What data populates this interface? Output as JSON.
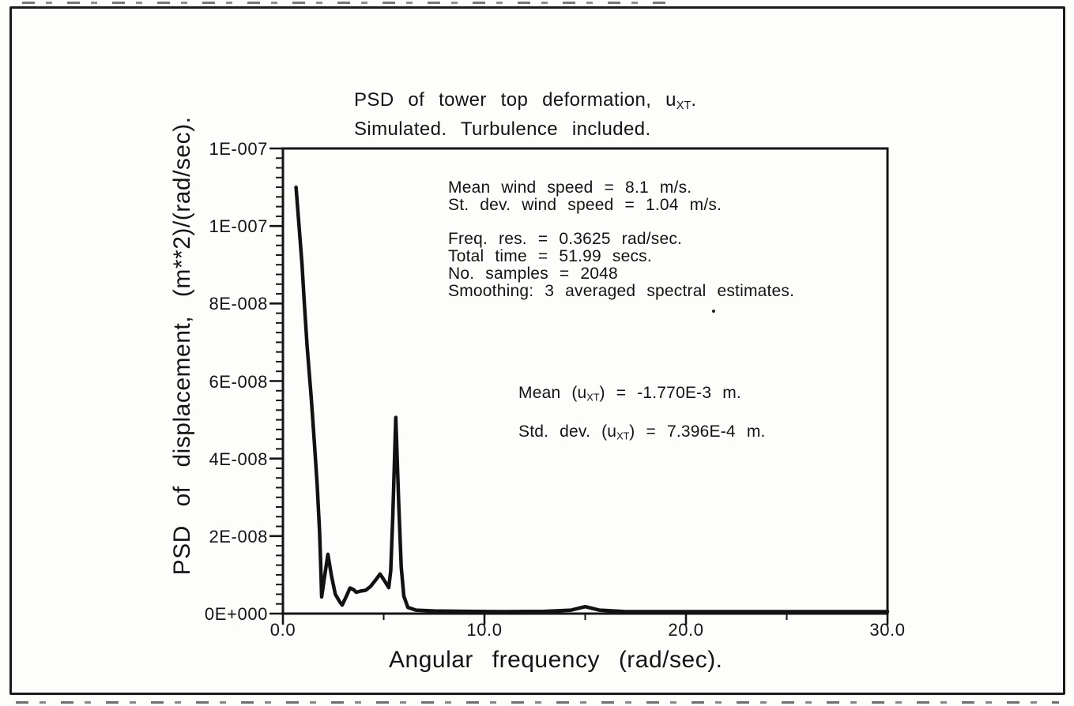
{
  "figure": {
    "title": {
      "pre": "PSD of tower top deformation, u",
      "sub": "XT",
      "post": ".",
      "line2": "Simulated. Turbulence included."
    }
  },
  "annotations": {
    "wind": [
      "Mean wind speed = 8.1 m/s.",
      "St. dev. wind speed = 1.04 m/s."
    ],
    "spectral": [
      "Freq. res. = 0.3625 rad/sec.",
      "Total time = 51.99 secs.",
      "No. samples = 2048",
      "Smoothing: 3 averaged spectral estimates."
    ],
    "stats": [
      {
        "pre": "Mean (u",
        "sub": "XT",
        "post": ") = -1.770E-3 m."
      },
      {
        "pre": "Std. dev. (u",
        "sub": "XT",
        "post": ") = 7.396E-4 m."
      }
    ]
  },
  "chart_data": {
    "type": "line",
    "title": "PSD of tower top deformation, u_XT. Simulated. Turbulence included.",
    "xlabel": "Angular frequency (rad/sec).",
    "ylabel": "PSD of displacement, (m**2)/(rad/sec).",
    "xlim": [
      0,
      30
    ],
    "ylim": [
      0,
      1.2e-07
    ],
    "grid": false,
    "legend": "none",
    "line_color": "#121212",
    "x_major_ticks": [
      0,
      10,
      20,
      30
    ],
    "x_major_tick_labels": [
      "0.0",
      "10.0",
      "20.0",
      "30.0"
    ],
    "x_minor_ticks": [
      5,
      15,
      25
    ],
    "y_major_ticks": [
      0,
      2e-08,
      4e-08,
      6e-08,
      8e-08,
      1e-07,
      1.2e-07
    ],
    "y_major_tick_labels": [
      "0E+000",
      "2E-008",
      "4E-008",
      "6E-008",
      "8E-008",
      "1E-007",
      "1E-007"
    ],
    "y_minor_tick_step": 2.5e-09,
    "series": [
      {
        "name": "PSD of tower top deformation (simulated, turbulence included)",
        "points": [
          [
            0.65,
            1.1e-07
          ],
          [
            0.8,
            1e-07
          ],
          [
            0.95,
            9e-08
          ],
          [
            1.05,
            8.1e-08
          ],
          [
            1.2,
            6.9e-08
          ],
          [
            1.4,
            5.6e-08
          ],
          [
            1.55,
            4.5e-08
          ],
          [
            1.7,
            3.3e-08
          ],
          [
            1.82,
            2.1e-08
          ],
          [
            1.88,
            1.2e-08
          ],
          [
            1.92,
            4.3e-09
          ],
          [
            2.05,
            9e-09
          ],
          [
            2.23,
            1.53e-08
          ],
          [
            2.4,
            1e-08
          ],
          [
            2.6,
            5e-09
          ],
          [
            2.8,
            3.2e-09
          ],
          [
            2.94,
            2.2e-09
          ],
          [
            3.15,
            4.5e-09
          ],
          [
            3.33,
            6.6e-09
          ],
          [
            3.5,
            6.2e-09
          ],
          [
            3.64,
            5.5e-09
          ],
          [
            3.85,
            5.8e-09
          ],
          [
            4.1,
            6e-09
          ],
          [
            4.35,
            7e-09
          ],
          [
            4.62,
            8.8e-09
          ],
          [
            4.82,
            1.02e-08
          ],
          [
            5.0,
            8.8e-09
          ],
          [
            5.25,
            6.7e-09
          ],
          [
            5.35,
            1.1e-08
          ],
          [
            5.45,
            2.5e-08
          ],
          [
            5.6,
            5.06e-08
          ],
          [
            5.75,
            2.8e-08
          ],
          [
            5.87,
            1.2e-08
          ],
          [
            6.0,
            4.5e-09
          ],
          [
            6.2,
            1.6e-09
          ],
          [
            6.6,
            9e-10
          ],
          [
            7.5,
            7e-10
          ],
          [
            9.0,
            6e-10
          ],
          [
            11.0,
            5e-10
          ],
          [
            13.0,
            6e-10
          ],
          [
            14.3,
            9e-10
          ],
          [
            15.0,
            1.8e-09
          ],
          [
            15.7,
            9e-10
          ],
          [
            17.0,
            5e-10
          ],
          [
            19.0,
            5e-10
          ],
          [
            21.0,
            5e-10
          ],
          [
            24.0,
            5e-10
          ],
          [
            27.0,
            5e-10
          ],
          [
            30.0,
            5e-10
          ]
        ]
      }
    ]
  }
}
